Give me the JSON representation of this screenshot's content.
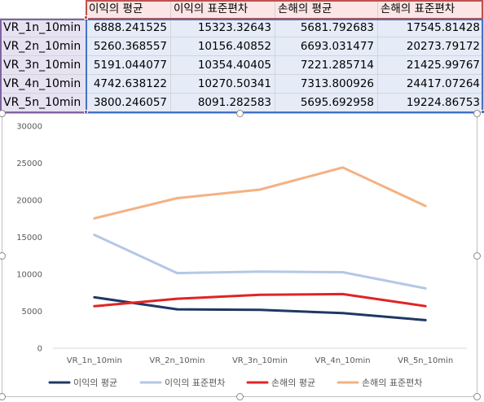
{
  "table": {
    "headers": [
      "이익의 평균",
      "이익의 표준편차",
      "손해의 평균",
      "손해의 표준편차"
    ],
    "rows": [
      {
        "label": "VR_1n_10min",
        "values": [
          "6888.241525",
          "15323.32643",
          "5681.792683",
          "17545.81428"
        ]
      },
      {
        "label": "VR_2n_10min",
        "values": [
          "5260.368557",
          "10156.40852",
          "6693.031477",
          "20273.79172"
        ]
      },
      {
        "label": "VR_3n_10min",
        "values": [
          "5191.044077",
          "10354.40405",
          "7221.285714",
          "21425.99767"
        ]
      },
      {
        "label": "VR_4n_10min",
        "values": [
          "4742.638122",
          "10270.50341",
          "7313.800926",
          "24417.07264"
        ]
      },
      {
        "label": "VR_5n_10min",
        "values": [
          "3800.246057",
          "8091.282583",
          "5695.692958",
          "19224.86753"
        ]
      }
    ]
  },
  "chart_data": {
    "type": "line",
    "categories": [
      "VR_1n_10min",
      "VR_2n_10min",
      "VR_3n_10min",
      "VR_4n_10min",
      "VR_5n_10min"
    ],
    "series": [
      {
        "name": "이익의 평균",
        "color": "#1f3864",
        "values": [
          6888.241525,
          5260.368557,
          5191.044077,
          4742.638122,
          3800.246057
        ]
      },
      {
        "name": "이익의 표준편차",
        "color": "#b4c7e7",
        "values": [
          15323.32643,
          10156.40852,
          10354.40405,
          10270.50341,
          8091.282583
        ]
      },
      {
        "name": "손해의 평균",
        "color": "#e02424",
        "values": [
          5681.792683,
          6693.031477,
          7221.285714,
          7313.800926,
          5695.692958
        ]
      },
      {
        "name": "손해의 표준편차",
        "color": "#f4b183",
        "values": [
          17545.81428,
          20273.79172,
          21425.99767,
          24417.07264,
          19224.86753
        ]
      }
    ],
    "yticks": [
      "0",
      "5000",
      "10000",
      "15000",
      "20000",
      "25000",
      "30000"
    ],
    "ylim": [
      0,
      30000
    ],
    "title": "",
    "xlabel": "",
    "ylabel": "",
    "grid": false,
    "legend_position": "bottom"
  }
}
